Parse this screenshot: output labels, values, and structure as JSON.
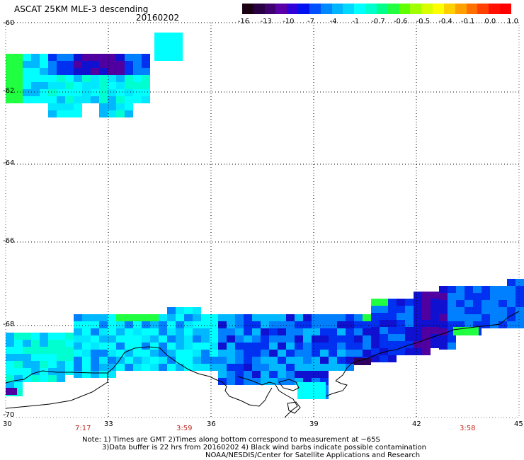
{
  "header": {
    "title": "ASCAT 25KM MLE-3 descending",
    "date": "20160202"
  },
  "colorbar": {
    "labels": [
      "-16",
      "-13",
      "-10",
      "-7",
      "-4",
      "-1",
      "-0.7",
      "-0.6",
      "-0.5",
      "-0.4",
      "-0.1",
      "0.0",
      "1.0"
    ],
    "colors": [
      "#1a0010",
      "#2a0045",
      "#3f0070",
      "#5a00a8",
      "#3000d8",
      "#0010f0",
      "#0050ff",
      "#0088ff",
      "#00b4ff",
      "#00d8ff",
      "#00ffff",
      "#00ffcc",
      "#00ff88",
      "#20ff40",
      "#60ff00",
      "#a0ff00",
      "#d8ff00",
      "#ffff00",
      "#ffd000",
      "#ffa000",
      "#ff7000",
      "#ff4000",
      "#ff1000",
      "#ff0000"
    ]
  },
  "axes": {
    "lat_labels": [
      "-60",
      "-62",
      "-64",
      "-66",
      "-68",
      "-70"
    ],
    "lon_labels": [
      "30",
      "33",
      "36",
      "39",
      "42",
      "45"
    ]
  },
  "time_labels": [
    "7:17",
    "3:59",
    "3:58"
  ],
  "notes": [
    "Note: 1) Times are GMT 2)Times along bottom correspond to measurement at ~65S",
    "3)Data buffer is 22 hrs from 20160202 4) Black wind barbs indicate possible contamination",
    "NOAA/NESDIS/Center for Satellite Applications and Research"
  ],
  "colors": {
    "green": "#20ff40",
    "cyan": "#00ffff",
    "blue": "#0030f0",
    "purple": "#5000a0",
    "time_red": "#c0281f"
  },
  "icons": [
    "coastline-outline"
  ]
}
